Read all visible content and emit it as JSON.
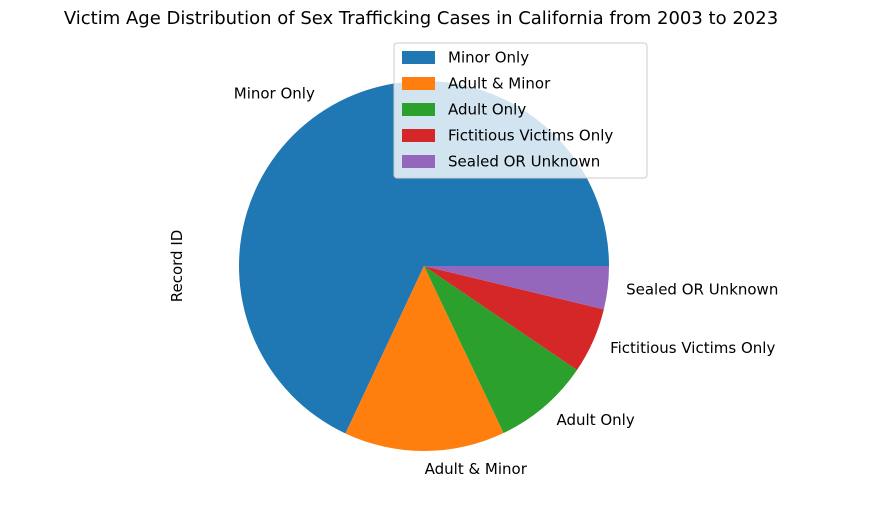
{
  "chart_data": {
    "type": "pie",
    "title": "Victim Age Distribution of Sex Trafficking Cases in California from 2003 to 2023",
    "ylabel": "Record ID",
    "categories": [
      "Minor Only",
      "Adult & Minor",
      "Adult Only",
      "Fictitious Victims Only",
      "Sealed OR Unknown"
    ],
    "values": [
      68.7,
      14.2,
      8.5,
      5.8,
      3.8
    ],
    "colors": [
      "#1f77b4",
      "#ff7f0e",
      "#2ca02c",
      "#d62728",
      "#9467bd"
    ],
    "start_angle_deg": 0,
    "direction": "counterclockwise",
    "legend": {
      "placement": "top-right",
      "entries": [
        "Minor Only",
        "Adult & Minor",
        "Adult Only",
        "Fictitious Victims Only",
        "Sealed OR Unknown"
      ]
    }
  }
}
